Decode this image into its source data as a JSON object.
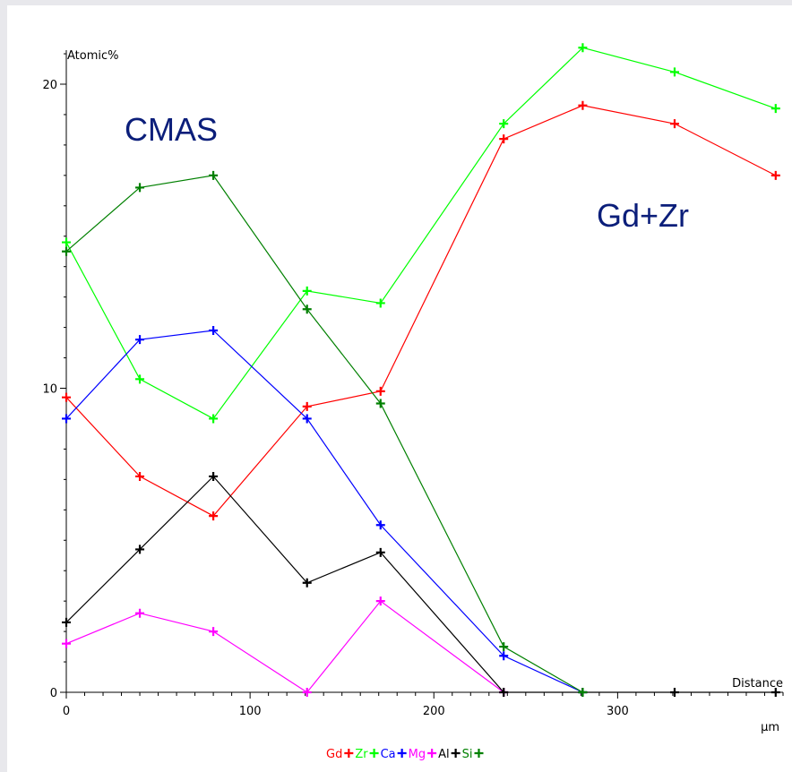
{
  "chart_data": {
    "type": "line",
    "ylabel": "Atomic%",
    "xlabel": "Distance",
    "x_unit": "µm",
    "xlim": [
      0,
      390
    ],
    "ylim": [
      0,
      21.5
    ],
    "x_ticks": [
      0,
      100,
      200,
      300
    ],
    "y_ticks": [
      0,
      10,
      20
    ],
    "x_tick_labels": [
      "0",
      "100",
      "200",
      "300"
    ],
    "y_tick_labels": [
      "0",
      "10",
      "20"
    ],
    "grid": false,
    "legend_position": "bottom-center",
    "annotations": [
      {
        "text": "CMAS"
      },
      {
        "text": "Gd+Zr"
      }
    ],
    "series": [
      {
        "name": "Gd",
        "color": "#ff0000",
        "x": [
          0,
          40,
          80,
          131,
          171,
          238,
          281,
          331,
          386
        ],
        "y": [
          9.7,
          7.1,
          5.8,
          9.4,
          9.9,
          18.2,
          19.3,
          18.7,
          17.0
        ]
      },
      {
        "name": "Zr",
        "color": "#00ff00",
        "x": [
          0,
          40,
          80,
          131,
          171,
          238,
          281,
          331,
          386
        ],
        "y": [
          14.8,
          10.3,
          9.0,
          13.2,
          12.8,
          18.7,
          21.2,
          20.4,
          19.2
        ]
      },
      {
        "name": "Ca",
        "color": "#0000ff",
        "x": [
          0,
          40,
          80,
          131,
          171,
          238,
          281
        ],
        "y": [
          9.0,
          11.6,
          11.9,
          9.0,
          5.5,
          1.2,
          0.0
        ]
      },
      {
        "name": "Mg",
        "color": "#ff00ff",
        "x": [
          0,
          40,
          80,
          131,
          171,
          238
        ],
        "y": [
          1.6,
          2.6,
          2.0,
          0.0,
          3.0,
          0.0
        ]
      },
      {
        "name": "Al",
        "color": "#000000",
        "x": [
          0,
          40,
          80,
          131,
          171,
          238,
          281,
          331,
          386
        ],
        "y": [
          2.3,
          4.7,
          7.1,
          3.6,
          4.6,
          0.0,
          0.0,
          0.0,
          0.0
        ]
      },
      {
        "name": "Si",
        "color": "#008000",
        "x": [
          0,
          40,
          80,
          131,
          171,
          238,
          281
        ],
        "y": [
          14.5,
          16.6,
          17.0,
          12.6,
          9.5,
          1.5,
          0.0
        ]
      }
    ]
  }
}
